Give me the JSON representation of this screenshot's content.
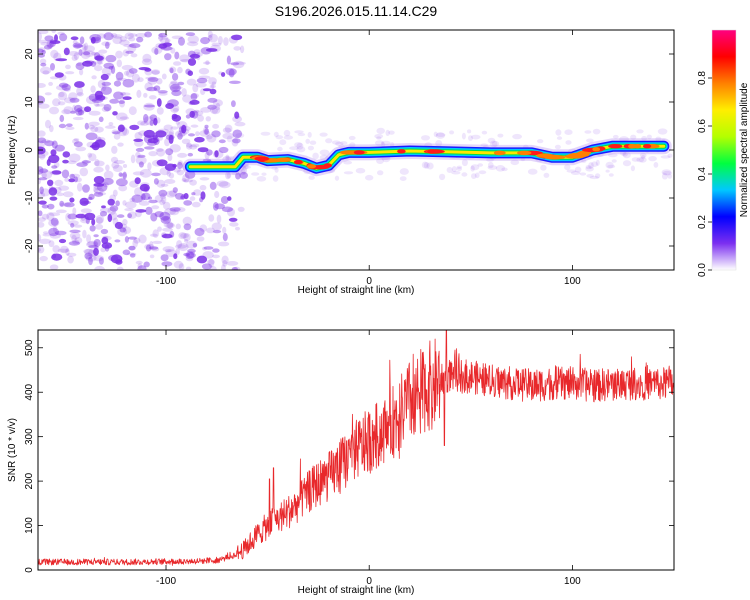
{
  "figure": {
    "title": "S196.2026.015.11.14.C29"
  },
  "colors": {
    "noise": "#7a2fe6",
    "snr_line": "#e8282b",
    "frame": "#000000"
  },
  "chart_data": [
    {
      "type": "heatmap",
      "id": "spectrogram",
      "title": "S196.2026.015.11.14.C29",
      "xlabel": "Height of straight line (km)",
      "ylabel": "Frequency (Hz)",
      "xlim": [
        -163,
        150
      ],
      "ylim": [
        -25,
        25
      ],
      "x_ticks": [
        -100,
        0,
        100
      ],
      "y_ticks": [
        -20,
        -10,
        0,
        10,
        20
      ],
      "noise_region_x": [
        -163,
        -65
      ],
      "signal_track": [
        {
          "x": -88,
          "f": -3.5
        },
        {
          "x": -75,
          "f": -3.5
        },
        {
          "x": -66,
          "f": -3.5
        },
        {
          "x": -62,
          "f": -1.5
        },
        {
          "x": -55,
          "f": -1.5
        },
        {
          "x": -50,
          "f": -2.2
        },
        {
          "x": -40,
          "f": -2.0
        },
        {
          "x": -32,
          "f": -2.8
        },
        {
          "x": -26,
          "f": -3.8
        },
        {
          "x": -20,
          "f": -3.2
        },
        {
          "x": -15,
          "f": -1.0
        },
        {
          "x": -10,
          "f": -0.5
        },
        {
          "x": 0,
          "f": -0.5
        },
        {
          "x": 20,
          "f": -0.2
        },
        {
          "x": 40,
          "f": -0.4
        },
        {
          "x": 60,
          "f": -0.6
        },
        {
          "x": 80,
          "f": -0.6
        },
        {
          "x": 90,
          "f": -1.5
        },
        {
          "x": 100,
          "f": -1.5
        },
        {
          "x": 110,
          "f": 0.0
        },
        {
          "x": 120,
          "f": 0.8
        },
        {
          "x": 135,
          "f": 0.8
        },
        {
          "x": 145,
          "f": 0.8
        }
      ],
      "colorbar": {
        "label": "Normalized spectral amplitude",
        "range": [
          0,
          1
        ],
        "ticks": [
          0.0,
          0.2,
          0.4,
          0.6,
          0.8
        ],
        "tick_labels": [
          "0.0",
          "0.2",
          "0.4",
          "0.6",
          "0.8"
        ],
        "colormap": [
          "#ffffff",
          "#7b2ff0",
          "#0000ff",
          "#00c8ff",
          "#00ff40",
          "#b4ff00",
          "#ffee00",
          "#ff8000",
          "#ff0000",
          "#ff0080"
        ]
      }
    },
    {
      "type": "line",
      "id": "snr",
      "xlabel": "Height of straight line (km)",
      "ylabel": "SNR (10 * v/v)",
      "xlim": [
        -163,
        150
      ],
      "ylim": [
        0,
        540
      ],
      "x_ticks": [
        -100,
        0,
        100
      ],
      "y_ticks": [
        0,
        100,
        200,
        300,
        400,
        500
      ],
      "series": [
        {
          "name": "SNR",
          "x": [
            -163,
            -140,
            -120,
            -100,
            -85,
            -75,
            -68,
            -62,
            -55,
            -50,
            -45,
            -40,
            -35,
            -30,
            -25,
            -20,
            -15,
            -10,
            -5,
            0,
            5,
            10,
            15,
            20,
            25,
            30,
            35,
            38,
            40,
            45,
            50,
            55,
            60,
            70,
            80,
            90,
            100,
            110,
            120,
            130,
            140,
            150
          ],
          "values": [
            18,
            18,
            18,
            19,
            20,
            22,
            30,
            45,
            80,
            100,
            115,
            130,
            150,
            175,
            195,
            210,
            230,
            255,
            275,
            290,
            305,
            325,
            350,
            380,
            400,
            415,
            428,
            435,
            440,
            438,
            435,
            430,
            425,
            420,
            415,
            420,
            420,
            415,
            418,
            420,
            420,
            418
          ]
        }
      ],
      "features": {
        "spike_max": {
          "x": 38,
          "y": 545
        },
        "dip_min": {
          "x": 37,
          "y": 280
        },
        "early_spikes": [
          {
            "x": -49,
            "y": 205
          },
          {
            "x": -47,
            "y": 230
          }
        ]
      }
    }
  ]
}
